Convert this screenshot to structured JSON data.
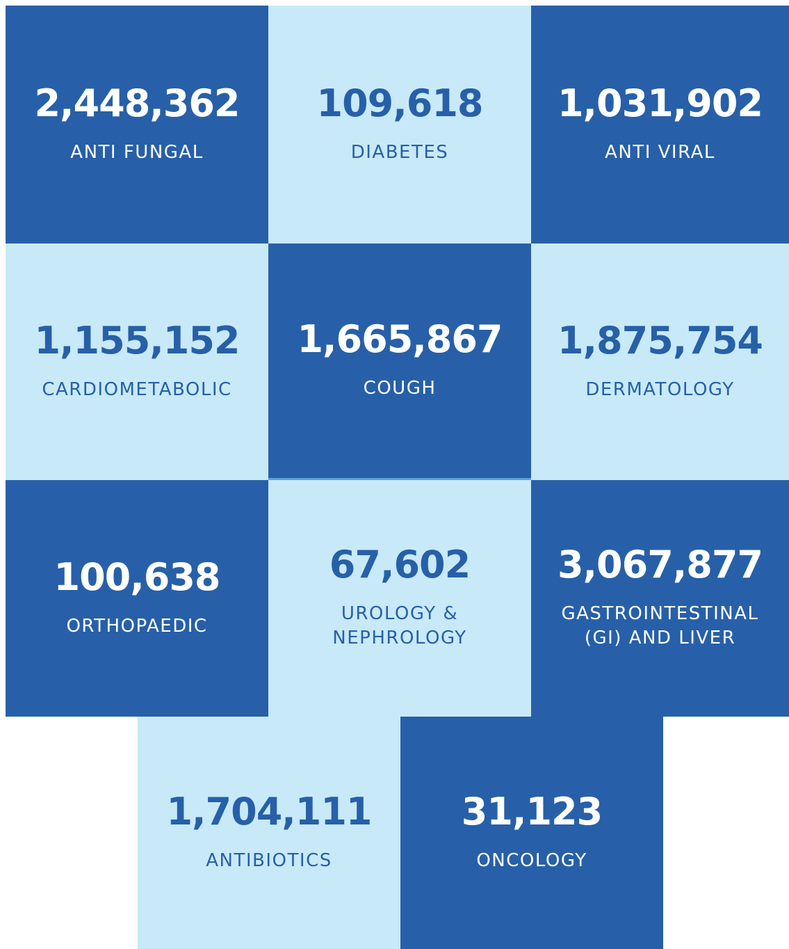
{
  "tiles": [
    {
      "number": "2,448,362",
      "label": [
        "ANTI FUNGAL"
      ]
    },
    {
      "number": "109,618",
      "label": [
        "DIABETES"
      ]
    },
    {
      "number": "1,031,902",
      "label": [
        "ANTI VIRAL"
      ]
    },
    {
      "number": "1,155,152",
      "label": [
        "CARDIOMETABOLIC"
      ]
    },
    {
      "number": "1,665,867",
      "label": [
        "COUGH"
      ]
    },
    {
      "number": "1,875,754",
      "label": [
        "DERMATOLOGY"
      ]
    },
    {
      "number": "100,638",
      "label": [
        "ORTHOPAEDIC"
      ]
    },
    {
      "number": "67,602",
      "label": [
        "UROLOGY &",
        "NEPHROLOGY"
      ]
    },
    {
      "number": "3,067,877",
      "label": [
        "GASTROINTESTINAL",
        "(GI) AND LIVER"
      ]
    },
    {
      "number": "1,704,111",
      "label": [
        "ANTIBIOTICS"
      ]
    },
    {
      "number": "31,123",
      "label": [
        "ONCOLOGY"
      ]
    }
  ]
}
